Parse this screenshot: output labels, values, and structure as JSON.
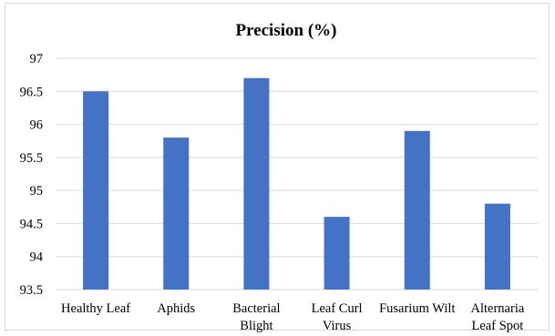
{
  "chart_data": {
    "type": "bar",
    "title": "Precision (%)",
    "xlabel": "",
    "ylabel": "",
    "categories": [
      [
        "Healthy Leaf"
      ],
      [
        "Aphids"
      ],
      [
        "Bacterial",
        "Blight"
      ],
      [
        "Leaf Curl",
        "Virus"
      ],
      [
        "Fusarium Wilt"
      ],
      [
        "Alternaria",
        "Leaf Spot"
      ]
    ],
    "values": [
      96.5,
      95.8,
      96.7,
      94.6,
      95.9,
      94.8
    ],
    "ylim": [
      93.5,
      97
    ],
    "yticks": [
      "93.5",
      "94",
      "94.5",
      "95",
      "95.5",
      "96",
      "96.5",
      "97"
    ],
    "grid": true,
    "legend": "none",
    "bar_color": "#4472c4"
  }
}
